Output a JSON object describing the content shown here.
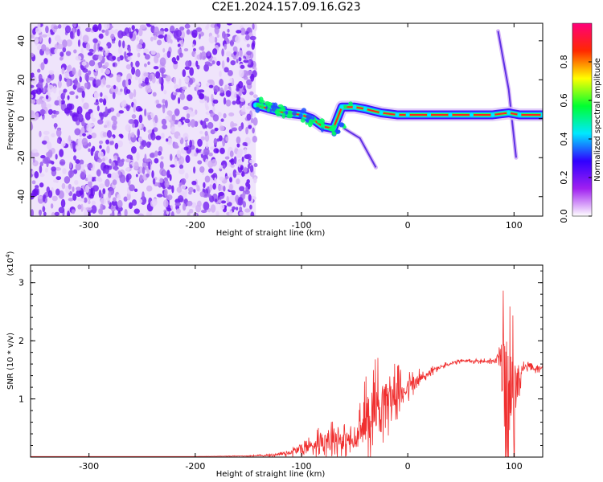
{
  "title": "C2E1.2024.157.09.16.G23",
  "chart_data": [
    {
      "type": "heatmap",
      "xlabel": "Height of straight line (km)",
      "ylabel": "Frequency (Hz)",
      "xlim": [
        -355,
        127
      ],
      "ylim": [
        -50,
        49
      ],
      "xticks": [
        -300,
        -200,
        -100,
        0,
        100
      ],
      "yticks": [
        -40,
        -20,
        0,
        20,
        40
      ],
      "colorbar": {
        "label": "Normalized spectral amplitude",
        "range": [
          0.0,
          1.0
        ],
        "ticks": [
          "0.0",
          "0.2",
          "0.4",
          "0.6",
          "0.8"
        ],
        "colors": [
          "#ffffff",
          "#a020f0",
          "#3000ff",
          "#00e8ff",
          "#00ff30",
          "#ffff00",
          "#ff2800",
          "#ff007a"
        ]
      },
      "noise_region": {
        "x_from": -355,
        "x_to": -143,
        "f_from": -50,
        "f_to": 49,
        "color": "#7a2cf0"
      },
      "signal_track": [
        {
          "x": -143,
          "f": 7
        },
        {
          "x": -130,
          "f": 5
        },
        {
          "x": -115,
          "f": 3
        },
        {
          "x": -100,
          "f": 2
        },
        {
          "x": -90,
          "f": 0
        },
        {
          "x": -80,
          "f": -4
        },
        {
          "x": -70,
          "f": -5
        },
        {
          "x": -62,
          "f": 6
        },
        {
          "x": -50,
          "f": 6
        },
        {
          "x": -40,
          "f": 5
        },
        {
          "x": -25,
          "f": 3
        },
        {
          "x": -10,
          "f": 2
        },
        {
          "x": 0,
          "f": 2
        },
        {
          "x": 20,
          "f": 2
        },
        {
          "x": 40,
          "f": 2
        },
        {
          "x": 60,
          "f": 2
        },
        {
          "x": 80,
          "f": 2
        },
        {
          "x": 95,
          "f": 3
        },
        {
          "x": 105,
          "f": 2
        },
        {
          "x": 127,
          "f": 2
        }
      ],
      "side_branches": [
        {
          "points": [
            {
              "x": -60,
              "f": -5
            },
            {
              "x": -45,
              "f": -10
            },
            {
              "x": -30,
              "f": -25
            }
          ]
        },
        {
          "points": [
            {
              "x": 85,
              "f": 45
            },
            {
              "x": 95,
              "f": 15
            },
            {
              "x": 102,
              "f": -20
            }
          ]
        }
      ]
    },
    {
      "type": "line",
      "xlabel": "Height of straight line (km)",
      "ylabel": "SNR (10 * v/v)",
      "yscale_label": "(x10",
      "yscale_exp": "4",
      "yscale_close": ")",
      "xlim": [
        -355,
        127
      ],
      "ylim": [
        0,
        3.3
      ],
      "xticks": [
        -300,
        -200,
        -100,
        0,
        100
      ],
      "yticks": [
        1,
        2,
        3
      ],
      "series": [
        {
          "color": "#f03030",
          "x": [
            -355,
            -300,
            -250,
            -200,
            -150,
            -130,
            -110,
            -100,
            -90,
            -80,
            -70,
            -60,
            -50,
            -40,
            -35,
            -30,
            -20,
            -10,
            0,
            10,
            20,
            30,
            40,
            50,
            60,
            70,
            80,
            85,
            90,
            95,
            100,
            105,
            110,
            115,
            120,
            127
          ],
          "y": [
            0.01,
            0.01,
            0.01,
            0.01,
            0.02,
            0.03,
            0.08,
            0.15,
            0.2,
            0.3,
            0.35,
            0.3,
            0.25,
            0.6,
            0.8,
            0.9,
            1.0,
            1.1,
            1.2,
            1.3,
            1.45,
            1.55,
            1.6,
            1.65,
            1.65,
            1.65,
            1.65,
            1.7,
            1.5,
            1.2,
            1.0,
            1.4,
            1.55,
            1.55,
            1.5,
            1.55
          ],
          "spike_amp": [
            0,
            0,
            0,
            0,
            0.01,
            0.03,
            0.08,
            0.15,
            0.25,
            0.3,
            0.4,
            0.3,
            0.3,
            0.8,
            0.9,
            0.9,
            0.7,
            0.5,
            0.3,
            0.25,
            0.1,
            0.06,
            0.05,
            0.04,
            0.05,
            0.05,
            0.06,
            0.2,
            1.6,
            1.7,
            1.5,
            0.4,
            0.1,
            0.08,
            0.08,
            0.08
          ]
        }
      ]
    }
  ]
}
